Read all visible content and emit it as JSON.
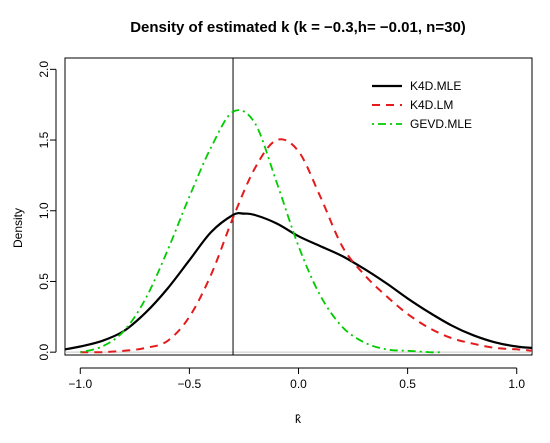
{
  "chart_data": {
    "type": "line",
    "title": "Density of estimated k (k = −0.3,h= −0.01, n=30)",
    "xlabel": "k̂",
    "ylabel": "Density",
    "xlim": [
      -1.07,
      1.07
    ],
    "ylim": [
      -0.02,
      2.08
    ],
    "x_ticks": [
      -1.0,
      -0.5,
      0.0,
      0.5,
      1.0
    ],
    "x_tick_labels": [
      "−1.0",
      "−0.5",
      "0.0",
      "0.5",
      "1.0"
    ],
    "y_ticks": [
      0.0,
      0.5,
      1.0,
      1.5,
      2.0
    ],
    "y_tick_labels": [
      "0.0",
      "0.5",
      "1.0",
      "1.5",
      "2.0"
    ],
    "vline_x": -0.3,
    "hline_y": 0,
    "legend_position": "top-right",
    "series": [
      {
        "name": "K4D.MLE",
        "color": "#000000",
        "dash": "solid",
        "x": [
          -1.07,
          -1.0,
          -0.9,
          -0.8,
          -0.7,
          -0.6,
          -0.5,
          -0.4,
          -0.3,
          -0.25,
          -0.2,
          -0.1,
          0.0,
          0.1,
          0.2,
          0.3,
          0.4,
          0.5,
          0.6,
          0.7,
          0.8,
          0.9,
          1.0,
          1.07
        ],
        "y": [
          0.02,
          0.04,
          0.08,
          0.15,
          0.28,
          0.45,
          0.65,
          0.85,
          0.97,
          0.98,
          0.97,
          0.91,
          0.82,
          0.75,
          0.68,
          0.59,
          0.49,
          0.38,
          0.28,
          0.19,
          0.12,
          0.07,
          0.04,
          0.03
        ]
      },
      {
        "name": "K4D.LM",
        "color": "#e41a1c",
        "dash": "dashed",
        "x": [
          -1.0,
          -0.9,
          -0.8,
          -0.7,
          -0.6,
          -0.5,
          -0.4,
          -0.3,
          -0.2,
          -0.1,
          0.0,
          0.1,
          0.2,
          0.3,
          0.4,
          0.5,
          0.6,
          0.7,
          0.8,
          0.9,
          1.0,
          1.07
        ],
        "y": [
          0.0,
          0.0,
          0.01,
          0.03,
          0.08,
          0.25,
          0.55,
          0.95,
          1.3,
          1.5,
          1.42,
          1.1,
          0.75,
          0.55,
          0.4,
          0.27,
          0.17,
          0.1,
          0.06,
          0.03,
          0.02,
          0.01
        ]
      },
      {
        "name": "GEVD.MLE",
        "color": "#00cc00",
        "dash": "dot-dash",
        "x": [
          -1.0,
          -0.9,
          -0.8,
          -0.7,
          -0.6,
          -0.5,
          -0.4,
          -0.3,
          -0.2,
          -0.1,
          0.0,
          0.1,
          0.2,
          0.3,
          0.4,
          0.5,
          0.6,
          0.65
        ],
        "y": [
          0.0,
          0.04,
          0.15,
          0.38,
          0.72,
          1.1,
          1.45,
          1.7,
          1.62,
          1.2,
          0.75,
          0.4,
          0.18,
          0.07,
          0.02,
          0.01,
          0.0,
          0.0
        ]
      }
    ]
  }
}
